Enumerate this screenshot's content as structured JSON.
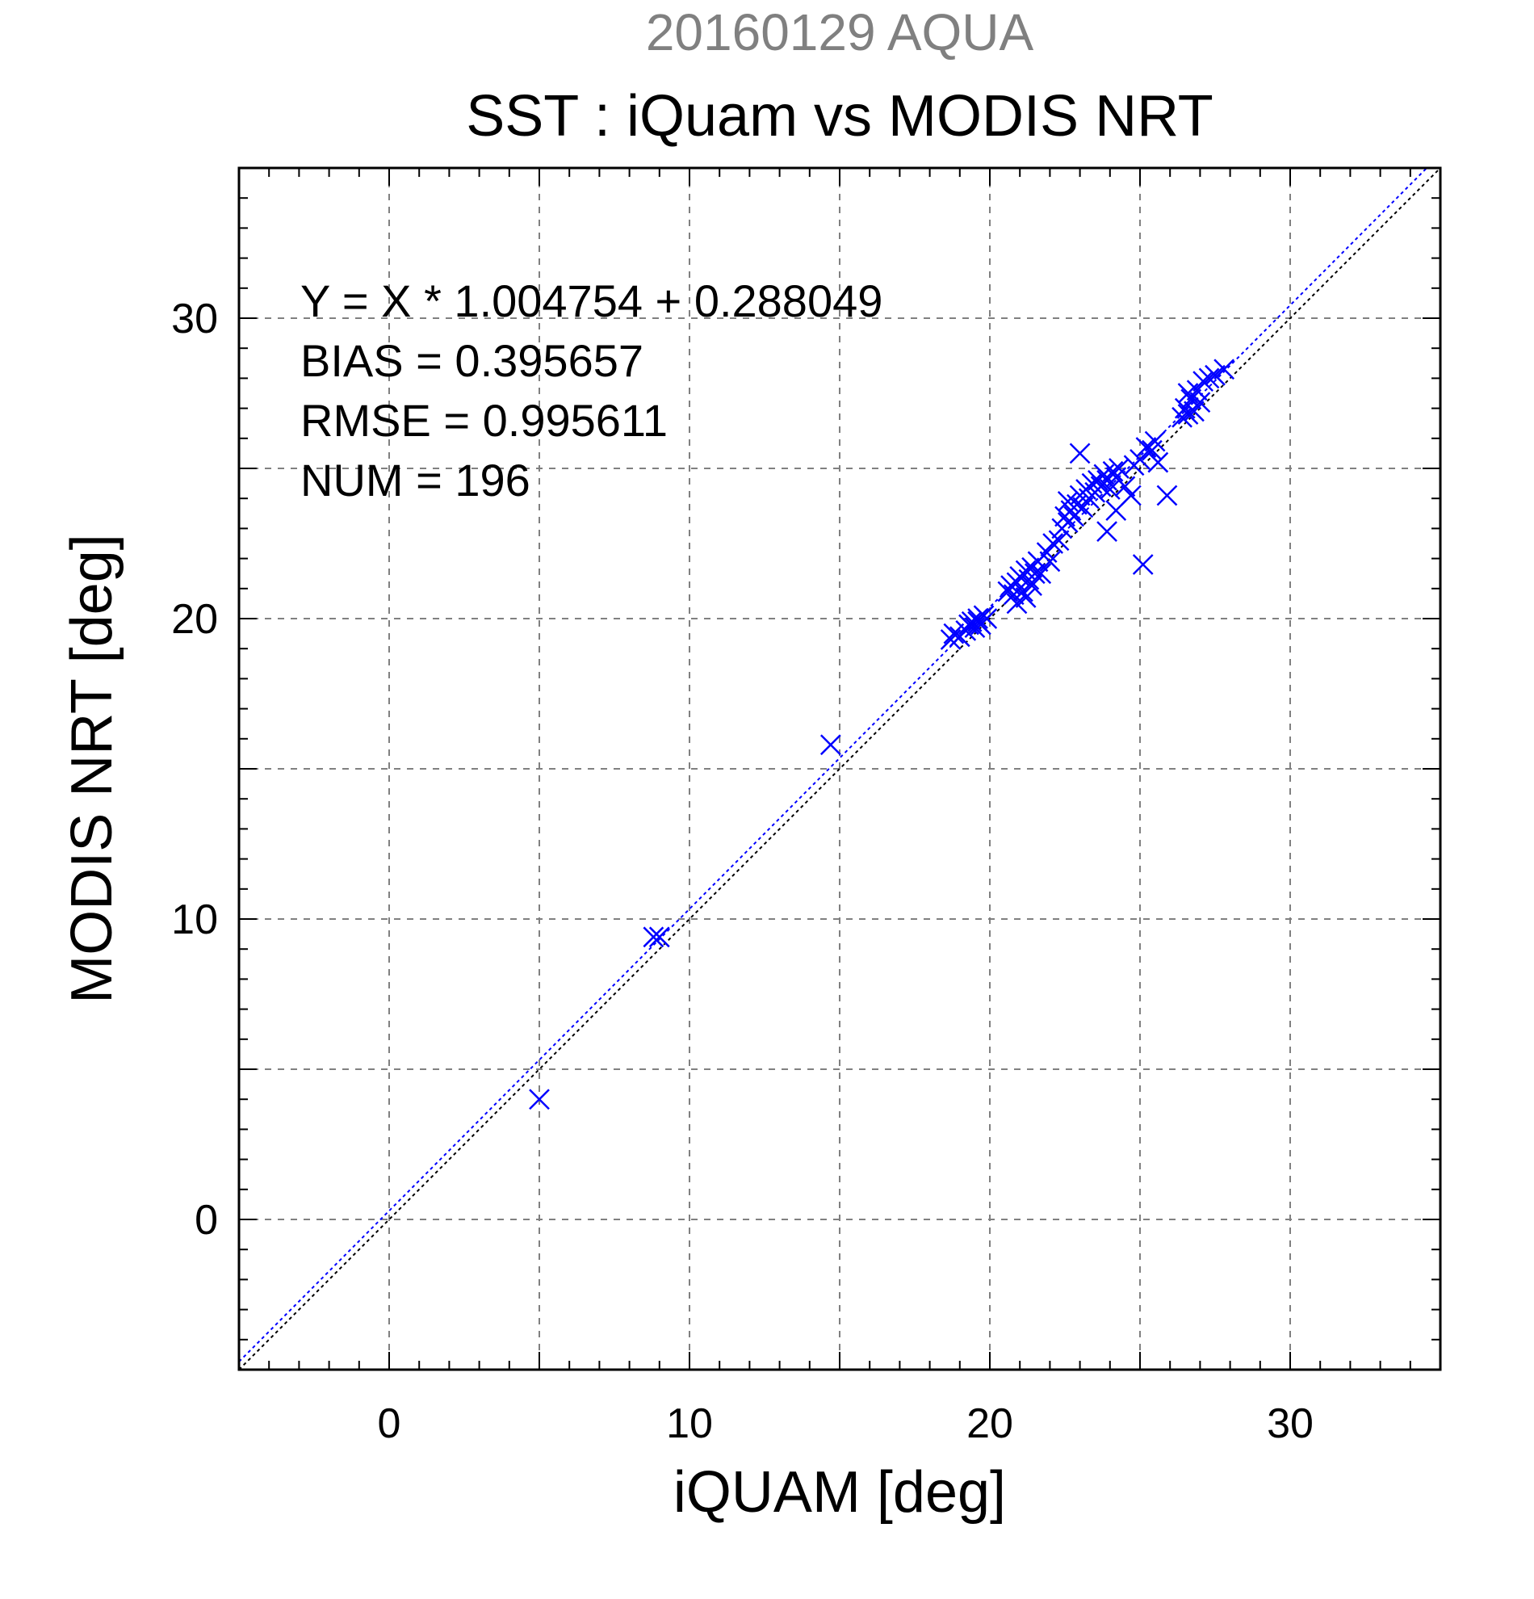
{
  "chart_data": {
    "type": "scatter",
    "super_title": "20160129 AQUA",
    "title": "SST : iQuam vs MODIS NRT",
    "xlabel": "iQUAM [deg]",
    "ylabel": "MODIS NRT [deg]",
    "xlim": [
      -5,
      35
    ],
    "ylim": [
      -5,
      35
    ],
    "xticks": [
      0,
      10,
      20,
      30
    ],
    "yticks": [
      0,
      10,
      20,
      30
    ],
    "grid": true,
    "stats": [
      "Y = X * 1.004754 + 0.288049",
      "BIAS = 0.395657",
      "RMSE = 0.995611",
      "NUM = 196"
    ],
    "regression": {
      "slope": 1.004754,
      "intercept": 0.288049
    },
    "series": [
      {
        "marker": "x",
        "color": "#0000ff",
        "points": [
          [
            5.0,
            4.0
          ],
          [
            8.8,
            9.4
          ],
          [
            9.0,
            9.4
          ],
          [
            14.7,
            15.8
          ],
          [
            18.7,
            19.3
          ],
          [
            18.8,
            19.5
          ],
          [
            19.0,
            19.4
          ],
          [
            19.2,
            19.6
          ],
          [
            19.3,
            19.8
          ],
          [
            19.5,
            19.7
          ],
          [
            19.6,
            20.0
          ],
          [
            19.7,
            19.8
          ],
          [
            19.8,
            20.1
          ],
          [
            19.9,
            20.0
          ],
          [
            19.6,
            19.9
          ],
          [
            19.4,
            19.9
          ],
          [
            20.6,
            20.9
          ],
          [
            20.7,
            21.1
          ],
          [
            20.8,
            20.8
          ],
          [
            20.9,
            21.2
          ],
          [
            20.9,
            20.5
          ],
          [
            21.0,
            21.4
          ],
          [
            21.1,
            20.9
          ],
          [
            21.2,
            21.6
          ],
          [
            21.3,
            21.3
          ],
          [
            21.4,
            21.7
          ],
          [
            21.5,
            21.5
          ],
          [
            21.6,
            21.9
          ],
          [
            21.4,
            21.1
          ],
          [
            21.2,
            20.7
          ],
          [
            21.7,
            21.5
          ],
          [
            21.9,
            22.2
          ],
          [
            22.0,
            21.9
          ],
          [
            22.1,
            22.5
          ],
          [
            22.3,
            22.6
          ],
          [
            22.4,
            23.0
          ],
          [
            22.5,
            23.4
          ],
          [
            22.6,
            23.2
          ],
          [
            22.7,
            23.6
          ],
          [
            22.8,
            23.4
          ],
          [
            22.9,
            23.8
          ],
          [
            22.6,
            23.9
          ],
          [
            23.0,
            24.1
          ],
          [
            23.1,
            23.7
          ],
          [
            23.2,
            24.3
          ],
          [
            23.3,
            24.0
          ],
          [
            23.4,
            24.5
          ],
          [
            23.5,
            24.2
          ],
          [
            23.6,
            24.6
          ],
          [
            23.7,
            24.4
          ],
          [
            23.8,
            24.8
          ],
          [
            23.9,
            24.6
          ],
          [
            24.0,
            24.3
          ],
          [
            24.1,
            24.9
          ],
          [
            24.2,
            24.7
          ],
          [
            24.3,
            25.0
          ],
          [
            23.0,
            25.5
          ],
          [
            23.9,
            22.9
          ],
          [
            24.2,
            23.6
          ],
          [
            24.5,
            24.4
          ],
          [
            24.7,
            24.1
          ],
          [
            24.8,
            25.1
          ],
          [
            25.0,
            25.3
          ],
          [
            25.2,
            25.7
          ],
          [
            25.4,
            25.6
          ],
          [
            25.5,
            25.9
          ],
          [
            25.6,
            25.2
          ],
          [
            25.1,
            21.8
          ],
          [
            25.9,
            24.1
          ],
          [
            26.4,
            26.7
          ],
          [
            26.5,
            27.0
          ],
          [
            26.6,
            26.8
          ],
          [
            26.7,
            27.3
          ],
          [
            26.8,
            26.9
          ],
          [
            26.9,
            27.6
          ],
          [
            27.0,
            27.2
          ],
          [
            27.1,
            27.9
          ],
          [
            27.3,
            28.0
          ],
          [
            27.5,
            28.1
          ],
          [
            27.8,
            28.3
          ],
          [
            26.6,
            27.5
          ]
        ]
      }
    ]
  }
}
